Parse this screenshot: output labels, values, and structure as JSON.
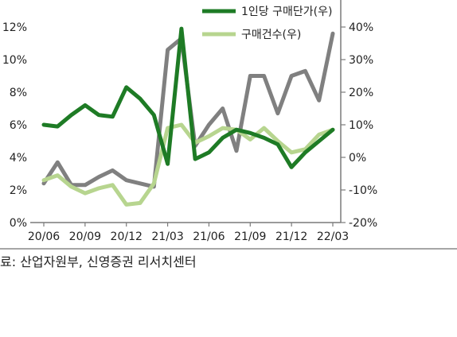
{
  "chart_data": {
    "type": "line",
    "categories": [
      "20/06",
      "20/07",
      "20/08",
      "20/09",
      "20/10",
      "20/11",
      "20/12",
      "21/01",
      "21/02",
      "21/03",
      "21/04",
      "21/05",
      "21/06",
      "21/07",
      "21/08",
      "21/09",
      "21/10",
      "21/11",
      "21/12",
      "22/01",
      "22/02",
      "22/03"
    ],
    "x_tick_labels": [
      "20/06",
      "20/09",
      "20/12",
      "21/03",
      "21/06",
      "21/09",
      "21/12",
      "22/03"
    ],
    "y_left": {
      "ticks": [
        "0%",
        "2%",
        "4%",
        "6%",
        "8%",
        "10%",
        "12%"
      ],
      "min": 0,
      "max": 14
    },
    "y_right": {
      "ticks": [
        "-20%",
        "-10%",
        "0%",
        "10%",
        "20%",
        "30%",
        "40%"
      ],
      "min": -20,
      "max": 50
    },
    "series": [
      {
        "name": "1인당 구매단가(우)",
        "axis": "right",
        "color": "#1e7b25",
        "values": [
          10,
          9.5,
          13,
          16,
          13,
          12.5,
          21.5,
          18,
          13,
          -2,
          39.5,
          -0.5,
          1.5,
          6,
          8.5,
          7.5,
          6,
          4,
          -3,
          1.5,
          5,
          8.5
        ]
      },
      {
        "name": "",
        "axis": "left",
        "color": "#808080",
        "values": [
          2.4,
          3.7,
          2.3,
          2.3,
          2.8,
          3.2,
          2.6,
          2.4,
          2.2,
          10.6,
          11.3,
          4.7,
          6.0,
          7.0,
          4.4,
          9.0,
          9.0,
          6.7,
          9.0,
          9.3,
          7.5,
          11.6
        ]
      },
      {
        "name": "구매건수(우)",
        "axis": "right",
        "color": "#b7d58f",
        "values": [
          -7,
          -5.5,
          -9,
          -11,
          -9.5,
          -8.5,
          -14.5,
          -14,
          -8,
          9,
          10,
          4.5,
          6.5,
          9,
          8.5,
          5.5,
          9,
          5,
          1.5,
          2.5,
          7,
          8.5
        ]
      }
    ]
  },
  "source_note": "료: 산업자원부, 신영증권 리서치센터"
}
